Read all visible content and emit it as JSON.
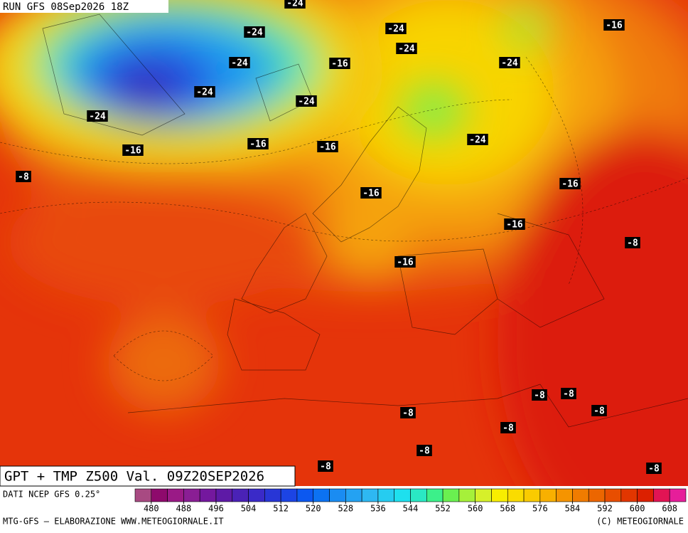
{
  "header": {
    "run": "RUN GFS 08Sep2026 18Z"
  },
  "map": {
    "title": "GPT + TMP Z500 Val. 09Z20SEP2026",
    "temperature_labels": [
      "-24",
      "-24",
      "-24",
      "-16",
      "-24",
      "-24",
      "-16",
      "-24",
      "-24",
      "-24",
      "-24",
      "-24",
      "-16",
      "-16",
      "-16",
      "-8",
      "-16",
      "-16",
      "-16",
      "-8",
      "-16",
      "-8",
      "-8",
      "-8",
      "-8",
      "-8",
      "-8",
      "-8",
      "-8"
    ]
  },
  "legend": {
    "source": "DATI NCEP GFS 0.25°",
    "colors": [
      "#a84a82",
      "#8e0a6c",
      "#9a1a86",
      "#8a1e94",
      "#74189e",
      "#5e1aa6",
      "#4a22b6",
      "#3a2ac8",
      "#2836d6",
      "#1c44e4",
      "#0c58f0",
      "#0c72f2",
      "#1a8cf2",
      "#24a2f2",
      "#2eb8f2",
      "#26ccf0",
      "#1ee0ee",
      "#2ae8c4",
      "#3cf08a",
      "#6af050",
      "#a6f03a",
      "#d6f02a",
      "#f8ee00",
      "#fadc00",
      "#facb00",
      "#f8b000",
      "#f59400",
      "#f07c00",
      "#ec6600",
      "#e84e00",
      "#e23600",
      "#dc2000",
      "#e21454",
      "#e61e9a"
    ],
    "ticks": [
      480,
      488,
      496,
      504,
      512,
      520,
      528,
      536,
      544,
      552,
      560,
      568,
      576,
      584,
      592,
      600,
      608
    ]
  },
  "footer": {
    "left": "MTG-GFS — ELABORAZIONE WWW.METEOGIORNALE.IT",
    "right": "(C) METEOGIORNALE"
  }
}
